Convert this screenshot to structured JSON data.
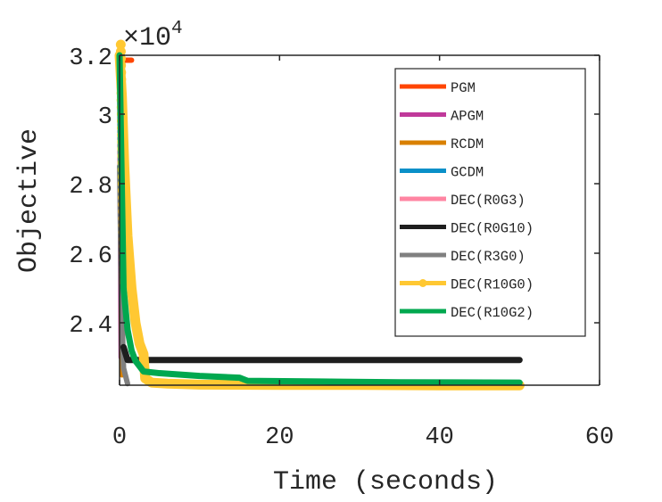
{
  "chart_data": {
    "type": "line",
    "title": "",
    "xlabel": "Time (seconds)",
    "ylabel": "Objective",
    "y_multiplier": "×10^4",
    "y_multiplier_base": "×10",
    "y_multiplier_exp": "4",
    "xlim": [
      0,
      60
    ],
    "ylim": [
      2.22,
      3.21
    ],
    "xticks": [
      "0",
      "20",
      "40",
      "60"
    ],
    "yticks": [
      "2.4",
      "2.6",
      "2.8",
      "3",
      "3.2"
    ],
    "grid": false,
    "legend_position": "upper right",
    "series": [
      {
        "name": "PGM",
        "color": "#FF4500",
        "x": [
          0.2,
          1.5
        ],
        "y": [
          3.155,
          3.155
        ]
      },
      {
        "name": "APGM",
        "color": "#C0399A",
        "x": [
          0,
          0.2
        ],
        "y": [
          3.2,
          2.3
        ]
      },
      {
        "name": "RCDM",
        "color": "#D98000",
        "x": [
          0,
          0.3
        ],
        "y": [
          3.2,
          2.25
        ]
      },
      {
        "name": "GCDM",
        "color": "#0A90C8",
        "x": [
          0,
          0.3
        ],
        "y": [
          3.2,
          2.35
        ]
      },
      {
        "name": "DEC(R0G3)",
        "color": "#FF85A2",
        "x": [
          0,
          0.4
        ],
        "y": [
          3.2,
          2.32
        ]
      },
      {
        "name": "DEC(R0G10)",
        "color": "#1E1E1E",
        "x": [
          0.5,
          1,
          50
        ],
        "y": [
          2.33,
          2.293,
          2.293
        ]
      },
      {
        "name": "DEC(R3G0)",
        "color": "#808080",
        "x": [
          0,
          0.2,
          0.5,
          1.0
        ],
        "y": [
          2.85,
          2.5,
          2.27,
          2.225
        ]
      },
      {
        "name": "DEC(R10G0)",
        "color": "#FFC832",
        "marker": "o",
        "x": [
          0,
          0.3,
          0.6,
          1.0,
          1.5,
          2.0,
          2.5,
          3.0,
          3.2,
          4,
          6,
          10,
          20,
          30,
          40,
          50
        ],
        "y": [
          3.2,
          3.05,
          2.85,
          2.65,
          2.5,
          2.4,
          2.34,
          2.31,
          2.24,
          2.228,
          2.225,
          2.222,
          2.221,
          2.221,
          2.22,
          2.22
        ]
      },
      {
        "name": "DEC(R10G2)",
        "color": "#00A84F",
        "x": [
          0,
          0.5,
          1.0,
          1.5,
          2.0,
          3,
          5,
          10,
          15,
          16,
          25,
          35,
          50
        ],
        "y": [
          3.2,
          2.5,
          2.38,
          2.32,
          2.29,
          2.26,
          2.255,
          2.247,
          2.242,
          2.233,
          2.231,
          2.229,
          2.228
        ]
      }
    ]
  }
}
